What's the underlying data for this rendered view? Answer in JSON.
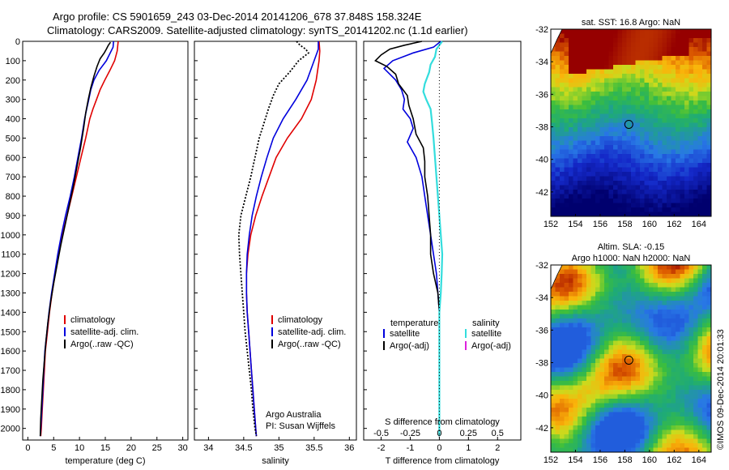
{
  "header": {
    "line1": "Argo profile: CS 5901659_243 03-Dec-2014 20141206_678 37.848S 158.324E",
    "line2": "Climatology: CARS2009. Satellite-adjusted climatology: synTS_20141202.nc (1.1d earlier)"
  },
  "colors": {
    "climatology": "#e00000",
    "satellite": "#0000dd",
    "argo": "#000000",
    "salinity_satellite": "#33dddd",
    "argo_adj": "#dd22dd"
  },
  "chart_data": [
    {
      "type": "line",
      "title": "",
      "xlabel": "temperature (deg C)",
      "ylabel": "",
      "xlim": [
        -1,
        31
      ],
      "ylim": [
        2060,
        0
      ],
      "xticks": [
        0,
        5,
        10,
        15,
        20,
        25,
        30
      ],
      "yticks": [
        0,
        100,
        200,
        300,
        400,
        500,
        600,
        700,
        800,
        900,
        1000,
        1100,
        1200,
        1300,
        1400,
        1500,
        1600,
        1700,
        1800,
        1900,
        2000
      ],
      "legend": [
        "climatology",
        "satellite-adj. clim.",
        "Argo(..raw -QC)"
      ],
      "series": [
        {
          "name": "climatology",
          "color_key": "climatology",
          "points": [
            [
              17.5,
              0
            ],
            [
              17.3,
              50
            ],
            [
              16.8,
              100
            ],
            [
              15.9,
              150
            ],
            [
              14.9,
              200
            ],
            [
              14.0,
              250
            ],
            [
              13.3,
              300
            ],
            [
              12.6,
              350
            ],
            [
              12.0,
              400
            ],
            [
              11.2,
              500
            ],
            [
              10.3,
              600
            ],
            [
              9.4,
              700
            ],
            [
              8.5,
              800
            ],
            [
              7.6,
              900
            ],
            [
              6.7,
              1000
            ],
            [
              6.0,
              1100
            ],
            [
              5.3,
              1200
            ],
            [
              4.7,
              1300
            ],
            [
              4.2,
              1400
            ],
            [
              3.8,
              1500
            ],
            [
              3.4,
              1600
            ],
            [
              3.2,
              1700
            ],
            [
              3.0,
              1800
            ],
            [
              2.8,
              1900
            ],
            [
              2.6,
              2000
            ],
            [
              2.5,
              2040
            ]
          ]
        },
        {
          "name": "satellite-adj. clim.",
          "color_key": "satellite",
          "points": [
            [
              16.6,
              0
            ],
            [
              16.5,
              30
            ],
            [
              15.2,
              100
            ],
            [
              13.8,
              150
            ],
            [
              12.8,
              200
            ],
            [
              12.2,
              250
            ],
            [
              11.8,
              300
            ],
            [
              11.4,
              350
            ],
            [
              11.0,
              400
            ],
            [
              10.4,
              500
            ],
            [
              9.7,
              600
            ],
            [
              9.0,
              700
            ],
            [
              8.2,
              800
            ],
            [
              7.3,
              900
            ],
            [
              6.5,
              1000
            ],
            [
              5.8,
              1100
            ],
            [
              5.2,
              1200
            ],
            [
              4.6,
              1300
            ],
            [
              4.1,
              1400
            ],
            [
              3.7,
              1500
            ],
            [
              3.3,
              1600
            ],
            [
              3.1,
              1700
            ],
            [
              2.9,
              1800
            ],
            [
              2.7,
              1900
            ],
            [
              2.5,
              2000
            ],
            [
              2.4,
              2040
            ]
          ]
        },
        {
          "name": "Argo(..raw -QC)",
          "color_key": "argo",
          "points": [
            [
              16.0,
              5
            ],
            [
              15.6,
              20
            ],
            [
              15.2,
              40
            ],
            [
              14.8,
              60
            ],
            [
              14.0,
              90
            ],
            [
              13.4,
              130
            ],
            [
              12.8,
              180
            ],
            [
              12.2,
              240
            ],
            [
              11.7,
              300
            ],
            [
              11.2,
              370
            ],
            [
              10.8,
              450
            ],
            [
              10.2,
              550
            ],
            [
              9.5,
              650
            ],
            [
              8.8,
              750
            ],
            [
              8.0,
              850
            ],
            [
              7.2,
              950
            ],
            [
              6.4,
              1050
            ],
            [
              5.7,
              1150
            ],
            [
              5.0,
              1250
            ],
            [
              4.4,
              1350
            ],
            [
              3.9,
              1450
            ],
            [
              3.5,
              1550
            ],
            [
              3.2,
              1650
            ],
            [
              2.9,
              1750
            ],
            [
              2.7,
              1850
            ],
            [
              2.5,
              1950
            ],
            [
              2.4,
              2040
            ]
          ]
        }
      ]
    },
    {
      "type": "line",
      "title": "",
      "xlabel": "salinity",
      "ylabel": "",
      "xlim": [
        33.8,
        36.1
      ],
      "ylim": [
        2060,
        0
      ],
      "xticks": [
        34,
        34.5,
        35,
        35.5,
        36
      ],
      "legend": [
        "climatology",
        "satellite-adj. clim.",
        "Argo(..raw -QC)"
      ],
      "annotations": [
        "Argo Australia",
        "PI: Susan Wijffels"
      ],
      "series": [
        {
          "name": "climatology",
          "color_key": "climatology",
          "points": [
            [
              35.57,
              0
            ],
            [
              35.58,
              50
            ],
            [
              35.57,
              100
            ],
            [
              35.53,
              200
            ],
            [
              35.46,
              300
            ],
            [
              35.32,
              400
            ],
            [
              35.12,
              500
            ],
            [
              34.96,
              600
            ],
            [
              34.86,
              700
            ],
            [
              34.76,
              800
            ],
            [
              34.67,
              900
            ],
            [
              34.6,
              1000
            ],
            [
              34.56,
              1100
            ],
            [
              34.54,
              1200
            ],
            [
              34.54,
              1300
            ],
            [
              34.55,
              1400
            ],
            [
              34.57,
              1500
            ],
            [
              34.59,
              1600
            ],
            [
              34.61,
              1700
            ],
            [
              34.63,
              1800
            ],
            [
              34.65,
              1900
            ],
            [
              34.67,
              2000
            ],
            [
              34.68,
              2040
            ]
          ]
        },
        {
          "name": "satellite-adj. clim.",
          "color_key": "satellite",
          "points": [
            [
              35.56,
              0
            ],
            [
              35.56,
              40
            ],
            [
              35.5,
              100
            ],
            [
              35.4,
              200
            ],
            [
              35.24,
              300
            ],
            [
              35.06,
              400
            ],
            [
              34.92,
              500
            ],
            [
              34.83,
              600
            ],
            [
              34.75,
              700
            ],
            [
              34.68,
              800
            ],
            [
              34.62,
              900
            ],
            [
              34.58,
              1000
            ],
            [
              34.55,
              1100
            ],
            [
              34.54,
              1200
            ],
            [
              34.54,
              1300
            ],
            [
              34.55,
              1400
            ],
            [
              34.57,
              1500
            ],
            [
              34.59,
              1600
            ],
            [
              34.61,
              1700
            ],
            [
              34.63,
              1800
            ],
            [
              34.65,
              1900
            ],
            [
              34.67,
              2000
            ],
            [
              34.68,
              2040
            ]
          ]
        },
        {
          "name": "Argo(..raw -QC)",
          "color_key": "argo",
          "points": [
            [
              35.25,
              0
            ],
            [
              35.3,
              20
            ],
            [
              35.38,
              40
            ],
            [
              35.42,
              60
            ],
            [
              35.28,
              100
            ],
            [
              35.15,
              160
            ],
            [
              35.0,
              220
            ],
            [
              34.92,
              280
            ],
            [
              34.85,
              350
            ],
            [
              34.79,
              420
            ],
            [
              34.72,
              500
            ],
            [
              34.66,
              600
            ],
            [
              34.6,
              700
            ],
            [
              34.53,
              800
            ],
            [
              34.46,
              900
            ],
            [
              34.43,
              1000
            ],
            [
              34.44,
              1100
            ],
            [
              34.46,
              1200
            ],
            [
              34.48,
              1300
            ],
            [
              34.5,
              1400
            ],
            [
              34.52,
              1500
            ],
            [
              34.55,
              1600
            ],
            [
              34.58,
              1700
            ],
            [
              34.61,
              1800
            ],
            [
              34.63,
              1900
            ],
            [
              34.66,
              2000
            ],
            [
              34.68,
              2040
            ]
          ]
        }
      ]
    },
    {
      "type": "line",
      "title": "",
      "xlabel": "T difference from climatology",
      "xlabel_top": "S difference from climatology",
      "ylabel": "",
      "xlim": [
        -2.6,
        2.8
      ],
      "ylim": [
        2060,
        0
      ],
      "xticks": [
        -2,
        -1,
        0,
        1,
        2
      ],
      "xticks_top": [
        "-0.5",
        "-0.25",
        "0",
        "0.25",
        "0.5"
      ],
      "legend": {
        "temperature_header": "temperature",
        "salinity_header": "salinity",
        "temperature": [
          "satellite",
          "Argo(-adj)"
        ],
        "salinity": [
          "satellite",
          "Argo(-adj)"
        ]
      },
      "series": [
        {
          "name": "temperature satellite",
          "color_key": "satellite",
          "points": [
            [
              0.05,
              0
            ],
            [
              -0.2,
              30
            ],
            [
              -0.9,
              60
            ],
            [
              -1.6,
              100
            ],
            [
              -1.9,
              140
            ],
            [
              -1.7,
              170
            ],
            [
              -1.5,
              200
            ],
            [
              -1.3,
              250
            ],
            [
              -1.2,
              300
            ],
            [
              -1.25,
              350
            ],
            [
              -1.0,
              400
            ],
            [
              -0.9,
              450
            ],
            [
              -1.1,
              520
            ],
            [
              -0.8,
              600
            ],
            [
              -0.6,
              700
            ],
            [
              -0.5,
              800
            ],
            [
              -0.4,
              900
            ],
            [
              -0.3,
              1000
            ],
            [
              -0.2,
              1100
            ],
            [
              -0.1,
              1200
            ],
            [
              -0.05,
              1300
            ],
            [
              0,
              1400
            ],
            [
              0,
              2040
            ]
          ]
        },
        {
          "name": "temperature Argo(-adj)",
          "color_key": "argo",
          "points": [
            [
              -0.6,
              0
            ],
            [
              -1.2,
              20
            ],
            [
              -1.7,
              40
            ],
            [
              -2.0,
              70
            ],
            [
              -2.2,
              100
            ],
            [
              -1.8,
              130
            ],
            [
              -1.5,
              170
            ],
            [
              -1.4,
              220
            ],
            [
              -1.1,
              280
            ],
            [
              -1.05,
              330
            ],
            [
              -0.9,
              400
            ],
            [
              -0.8,
              480
            ],
            [
              -0.55,
              550
            ],
            [
              -0.5,
              620
            ],
            [
              -0.5,
              700
            ],
            [
              -0.4,
              800
            ],
            [
              -0.35,
              900
            ],
            [
              -0.3,
              1000
            ],
            [
              -0.3,
              1100
            ],
            [
              -0.2,
              1200
            ],
            [
              -0.05,
              1300
            ],
            [
              0,
              1400
            ],
            [
              0,
              2040
            ]
          ]
        },
        {
          "name": "salinity satellite",
          "color_key": "salinity_satellite",
          "points": [
            [
              0.1,
              0
            ],
            [
              -0.1,
              40
            ],
            [
              -0.15,
              80
            ],
            [
              -0.3,
              120
            ],
            [
              -0.35,
              160
            ],
            [
              -0.5,
              220
            ],
            [
              -0.55,
              260
            ],
            [
              -0.45,
              300
            ],
            [
              -0.3,
              350
            ],
            [
              -0.25,
              420
            ],
            [
              -0.2,
              500
            ],
            [
              -0.15,
              600
            ],
            [
              -0.1,
              700
            ],
            [
              -0.05,
              800
            ],
            [
              0,
              900
            ],
            [
              0.05,
              1000
            ],
            [
              0.1,
              1100
            ],
            [
              0.08,
              1200
            ],
            [
              0.05,
              1300
            ],
            [
              0,
              1400
            ],
            [
              0,
              2040
            ]
          ]
        }
      ]
    },
    {
      "type": "heatmap",
      "title": "sat. SST: 16.8  Argo: NaN",
      "xlim": [
        152,
        165
      ],
      "ylim": [
        -43.5,
        -32
      ],
      "xticks": [
        152,
        154,
        156,
        158,
        160,
        162,
        164
      ],
      "yticks": [
        -32,
        -34,
        -36,
        -38,
        -40,
        -42
      ],
      "marker": [
        158.324,
        -37.848
      ]
    },
    {
      "type": "heatmap",
      "title": "Altim. SLA: -0.15",
      "subtitle": "Argo h1000: NaN  h2000: NaN",
      "xlim": [
        152,
        165
      ],
      "ylim": [
        -43.5,
        -32
      ],
      "xticks": [
        152,
        154,
        156,
        158,
        160,
        162,
        164
      ],
      "yticks": [
        -32,
        -34,
        -36,
        -38,
        -40,
        -42
      ],
      "marker": [
        158.324,
        -37.848
      ]
    }
  ],
  "footer": {
    "credit": "©IMOS 09-Dec-2014 20:01:33"
  }
}
